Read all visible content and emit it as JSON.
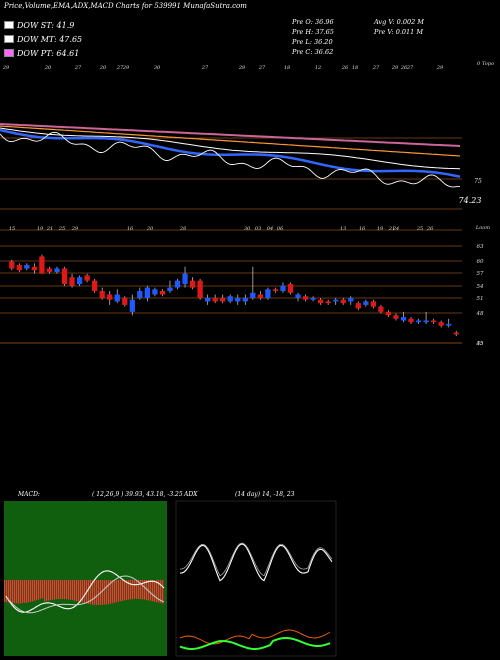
{
  "header": {
    "title": "Price,Volume,EMA,ADX,MACD Charts for 539991 MunafaSutra.com"
  },
  "legend": [
    {
      "label": "DOW ST: 41.9",
      "color": "#ffffff"
    },
    {
      "label": "DOW MT: 47.65",
      "color": "#ffffff"
    },
    {
      "label": "DOW PT: 64.61",
      "color": "#ff66ff"
    }
  ],
  "stats": {
    "pre_o": "Pre   O: 36.96",
    "pre_h": "Pre   H: 37.65",
    "pre_l": "Pre   L: 36.20",
    "pre_c": "Pre   C: 36.62",
    "avg_v": "Avg V: 0.002  M",
    "pre_v": "Pre   V: 0.011 M"
  },
  "chart_data": [
    {
      "type": "line",
      "name": "ema-panel",
      "y_labels": [
        {
          "text": "75",
          "value": 75
        },
        {
          "text": "74.23",
          "value": 74.23
        }
      ],
      "x_tick_labels": [
        "29",
        "20",
        "27",
        "20",
        "27",
        "29",
        "30",
        "27",
        "29",
        "27",
        "18",
        "12",
        "26",
        "18",
        "27",
        "29",
        "26",
        "27",
        "29",
        "30"
      ],
      "corner_label": "0 Topo",
      "series": [
        {
          "role": "price",
          "color": "#ffffff"
        },
        {
          "role": "ema-short",
          "color": "#3366ff"
        },
        {
          "role": "ema-mid",
          "color": "#ffffff"
        },
        {
          "role": "ema-long-1",
          "color": "#ff9933"
        },
        {
          "role": "ema-long-2",
          "color": "#cc6699"
        }
      ]
    },
    {
      "type": "candlestick",
      "name": "price-panel",
      "y_ticks": [
        63,
        60,
        57,
        54,
        51,
        48,
        45,
        35
      ],
      "corner_label": "Loom",
      "x_tick_labels": [
        "15",
        "19",
        "21",
        "25",
        "29",
        "16",
        "20",
        "28",
        "30",
        "03",
        "04",
        "06",
        "13",
        "16",
        "19",
        "21",
        "24",
        "25",
        "26",
        "28",
        "30"
      ],
      "candles": [
        {
          "o": 58.5,
          "c": 56.5,
          "h": 59,
          "l": 56
        },
        {
          "o": 57.5,
          "c": 56,
          "h": 58,
          "l": 55.5
        },
        {
          "o": 56.5,
          "c": 57.5,
          "h": 58,
          "l": 56
        },
        {
          "o": 57,
          "c": 56,
          "h": 58,
          "l": 55
        },
        {
          "o": 60,
          "c": 55,
          "h": 60.5,
          "l": 55
        },
        {
          "o": 56.5,
          "c": 55.5,
          "h": 57,
          "l": 55
        },
        {
          "o": 55.5,
          "c": 56.5,
          "h": 57,
          "l": 55
        },
        {
          "o": 56.5,
          "c": 52,
          "h": 57,
          "l": 51.5
        },
        {
          "o": 54,
          "c": 51.5,
          "h": 55,
          "l": 51
        },
        {
          "o": 52,
          "c": 54,
          "h": 54.5,
          "l": 51.5
        },
        {
          "o": 54.5,
          "c": 53,
          "h": 55,
          "l": 52.5
        },
        {
          "o": 53,
          "c": 50,
          "h": 53.5,
          "l": 49.5
        },
        {
          "o": 50,
          "c": 48,
          "h": 51,
          "l": 47.5
        },
        {
          "o": 49,
          "c": 47.5,
          "h": 50,
          "l": 46
        },
        {
          "o": 47,
          "c": 49,
          "h": 50.5,
          "l": 46.5
        },
        {
          "o": 48,
          "c": 46,
          "h": 48.5,
          "l": 45.5
        },
        {
          "o": 44,
          "c": 47.5,
          "h": 49,
          "l": 43
        },
        {
          "o": 48,
          "c": 50,
          "h": 51,
          "l": 47.5
        },
        {
          "o": 48,
          "c": 51,
          "h": 51.5,
          "l": 47
        },
        {
          "o": 49,
          "c": 50.5,
          "h": 51,
          "l": 48.5
        },
        {
          "o": 50,
          "c": 49,
          "h": 50.5,
          "l": 48.5
        },
        {
          "o": 50,
          "c": 51,
          "h": 53,
          "l": 49.5
        },
        {
          "o": 51,
          "c": 53,
          "h": 53.5,
          "l": 50.5
        },
        {
          "o": 52,
          "c": 55,
          "h": 57,
          "l": 51
        },
        {
          "o": 53,
          "c": 51,
          "h": 54,
          "l": 50.5
        },
        {
          "o": 53,
          "c": 48,
          "h": 53.5,
          "l": 47.5
        },
        {
          "o": 47,
          "c": 48,
          "h": 49,
          "l": 46
        },
        {
          "o": 48,
          "c": 47,
          "h": 49,
          "l": 46.5
        },
        {
          "o": 48,
          "c": 47,
          "h": 49,
          "l": 46.5
        },
        {
          "o": 47,
          "c": 48.5,
          "h": 49,
          "l": 46.5
        },
        {
          "o": 47,
          "c": 48,
          "h": 49,
          "l": 46
        },
        {
          "o": 47,
          "c": 48,
          "h": 49,
          "l": 46
        },
        {
          "o": 48,
          "c": 49.5,
          "h": 57,
          "l": 47.5
        },
        {
          "o": 49,
          "c": 48,
          "h": 50,
          "l": 47.5
        },
        {
          "o": 48,
          "c": 50.5,
          "h": 51,
          "l": 47.5
        },
        {
          "o": 50.5,
          "c": 50,
          "h": 51,
          "l": 49.5
        },
        {
          "o": 50,
          "c": 51.5,
          "h": 52.5,
          "l": 49.5
        },
        {
          "o": 52,
          "c": 49.5,
          "h": 52.5,
          "l": 49
        },
        {
          "o": 48,
          "c": 49,
          "h": 49.5,
          "l": 47
        },
        {
          "o": 48.5,
          "c": 47.5,
          "h": 49,
          "l": 47
        },
        {
          "o": 47.5,
          "c": 48,
          "h": 48.5,
          "l": 47
        },
        {
          "o": 47.5,
          "c": 46.5,
          "h": 48,
          "l": 46
        },
        {
          "o": 47,
          "c": 46.5,
          "h": 47.5,
          "l": 46
        },
        {
          "o": 47,
          "c": 47.5,
          "h": 48,
          "l": 46
        },
        {
          "o": 47.5,
          "c": 46.5,
          "h": 48,
          "l": 46
        },
        {
          "o": 47,
          "c": 48,
          "h": 48.5,
          "l": 46
        },
        {
          "o": 46.5,
          "c": 45,
          "h": 47,
          "l": 44.5
        },
        {
          "o": 46,
          "c": 47,
          "h": 47.5,
          "l": 45.5
        },
        {
          "o": 47,
          "c": 45.5,
          "h": 47.5,
          "l": 45
        },
        {
          "o": 45.5,
          "c": 44,
          "h": 46,
          "l": 43.5
        },
        {
          "o": 44,
          "c": 43,
          "h": 44.5,
          "l": 42.5
        },
        {
          "o": 43,
          "c": 42,
          "h": 43.5,
          "l": 41.5
        },
        {
          "o": 41.5,
          "c": 42.5,
          "h": 44,
          "l": 41
        },
        {
          "o": 42,
          "c": 41,
          "h": 42.5,
          "l": 40.5
        },
        {
          "o": 41,
          "c": 41.5,
          "h": 42,
          "l": 40.5
        },
        {
          "o": 41,
          "c": 41.5,
          "h": 44,
          "l": 40.5
        },
        {
          "o": 41.5,
          "c": 41,
          "h": 42,
          "l": 40.5
        },
        {
          "o": 41,
          "c": 40,
          "h": 41.5,
          "l": 39.5
        },
        {
          "o": 40,
          "c": 40.5,
          "h": 42,
          "l": 39.5
        },
        {
          "o": 38,
          "c": 37.5,
          "h": 38.5,
          "l": 37
        }
      ]
    },
    {
      "type": "bar",
      "name": "macd-panel",
      "title": "MACD:",
      "params": "( 12,26,9 ) 39.93, 43.18, -3.25",
      "colors": {
        "bars": "#ff3333",
        "bg": "#0f5f0f",
        "line1": "#ffffff",
        "line2": "#cccccc"
      }
    },
    {
      "type": "line",
      "name": "adx-panel",
      "title": "ADX",
      "params": "(14 day) 14, -18, 23",
      "colors": {
        "adx": "#ffffff",
        "plus_di": "#ff6600",
        "minus_di": "#33ff33"
      }
    }
  ]
}
